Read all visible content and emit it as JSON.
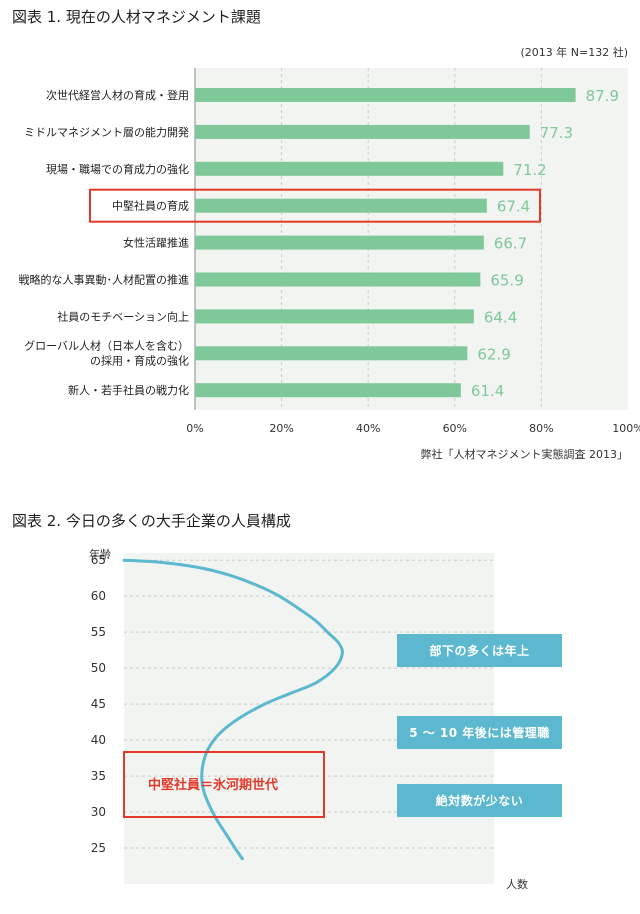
{
  "chart_data": [
    {
      "type": "bar",
      "orientation": "horizontal",
      "title": "図表 1. 現在の人材マネジメント課題",
      "note": "(2013 年 N=132 社)",
      "source": "弊社「人材マネジメント実態調査 2013」",
      "categories": [
        "次世代経営人材の育成・登用",
        "ミドルマネジメント層の能力開発",
        "現場・職場での育成力の強化",
        "中堅社員の育成",
        "女性活躍推進",
        "戦略的な人事異動･人材配置の推進",
        "社員のモチベーション向上",
        [
          "グローバル人材（日本人を含む）",
          "の採用・育成の強化"
        ],
        "新人・若手社員の戦力化"
      ],
      "values": [
        87.9,
        77.3,
        71.2,
        67.4,
        66.7,
        65.9,
        64.4,
        62.9,
        61.4
      ],
      "highlight_index": 3,
      "xlim": [
        0,
        100
      ],
      "xticks": [
        "0%",
        "20%",
        "40%",
        "60%",
        "80%",
        "100%"
      ],
      "grid": true,
      "colors": {
        "bar": "#7ec89a",
        "value_label": "#7ec89a",
        "highlight": "#e23a2a",
        "plot_bg": "#f2f4f2"
      }
    },
    {
      "type": "line",
      "title": "図表 2. 今日の多くの大手企業の人員構成",
      "ylabel": "年齢",
      "xlabel": "人数",
      "ylim": [
        20,
        66
      ],
      "yticks": [
        25,
        30,
        35,
        40,
        45,
        50,
        55,
        60,
        65
      ],
      "series": [
        {
          "points": [
            [
              0.0,
              65
            ],
            [
              10,
              64.7
            ],
            [
              20,
              64
            ],
            [
              28,
              63
            ],
            [
              36,
              61.5
            ],
            [
              42,
              60
            ],
            [
              48,
              58
            ],
            [
              52,
              56.5
            ],
            [
              55,
              55
            ],
            [
              58,
              53.5
            ],
            [
              59,
              52
            ],
            [
              57,
              50
            ],
            [
              52,
              48
            ],
            [
              45,
              46.5
            ],
            [
              38,
              45
            ],
            [
              31,
              43
            ],
            [
              26,
              41
            ],
            [
              23,
              39
            ],
            [
              21.5,
              37
            ],
            [
              21,
              35
            ],
            [
              21.5,
              33
            ],
            [
              23,
              31
            ],
            [
              25,
              29
            ],
            [
              27.5,
              27
            ],
            [
              30,
              25
            ],
            [
              32,
              23.5
            ]
          ]
        }
      ],
      "annotations": [
        "部下の多くは年上",
        "5 ～ 10 年後には管理職",
        "絶対数が少ない"
      ],
      "highlight_label": "中堅社員＝氷河期世代",
      "grid": true,
      "colors": {
        "line": "#5bb8cf",
        "callout": "#5bb8cf",
        "highlight": "#e23a2a",
        "plot_bg": "#f2f4f2"
      }
    }
  ]
}
